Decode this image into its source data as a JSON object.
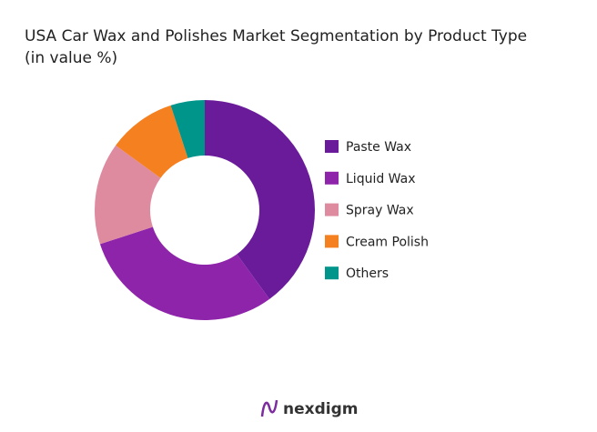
{
  "chart_data": {
    "type": "pie",
    "title": "USA Car Wax and Polishes Market Segmentation by Product Type",
    "subtitle": "(in value %)",
    "categories": [
      "Paste Wax",
      "Liquid Wax",
      "Spray Wax",
      "Cream Polish",
      "Others"
    ],
    "values": [
      40,
      30,
      15,
      10,
      5
    ],
    "colors": [
      "#6a1b9a",
      "#8e24aa",
      "#de8ba0",
      "#f5801f",
      "#00958a"
    ],
    "legend": "right"
  },
  "brand": "nexdigm"
}
